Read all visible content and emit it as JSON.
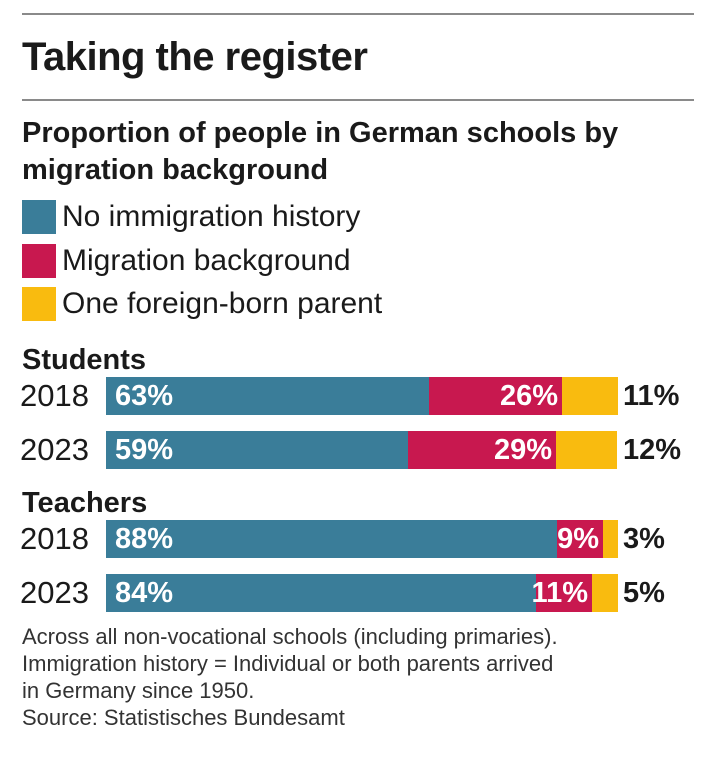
{
  "title": "Taking the register",
  "subtitle": "Proportion of people in German schools by migration background",
  "colors": {
    "no_immigration_history": "#3a7d99",
    "migration_background": "#c8184f",
    "one_foreign_born_parent": "#f9bb0f"
  },
  "legend": [
    {
      "label": "No immigration history",
      "color": "#3a7d99"
    },
    {
      "label": "Migration background",
      "color": "#c8184f"
    },
    {
      "label": "One foreign-born parent",
      "color": "#f9bb0f"
    }
  ],
  "chart_data": {
    "type": "bar",
    "orientation": "horizontal",
    "stacked": true,
    "title": "Proportion of people in German schools by migration background",
    "series": [
      {
        "name": "No immigration history",
        "color": "#3a7d99"
      },
      {
        "name": "Migration background",
        "color": "#c8184f"
      },
      {
        "name": "One foreign-born parent",
        "color": "#f9bb0f"
      }
    ],
    "groups": [
      {
        "name": "Students",
        "rows": [
          {
            "year": "2018",
            "values": [
              63,
              26,
              11
            ],
            "labels": [
              "63%",
              "26%",
              "11%"
            ]
          },
          {
            "year": "2023",
            "values": [
              59,
              29,
              12
            ],
            "labels": [
              "59%",
              "29%",
              "12%"
            ]
          }
        ]
      },
      {
        "name": "Teachers",
        "rows": [
          {
            "year": "2018",
            "values": [
              88,
              9,
              3
            ],
            "labels": [
              "88%",
              "9%",
              "3%"
            ]
          },
          {
            "year": "2023",
            "values": [
              84,
              11,
              5
            ],
            "labels": [
              "84%",
              "11%",
              "5%"
            ]
          }
        ]
      }
    ],
    "xlim": [
      0,
      100
    ],
    "unit": "%"
  },
  "footnote": {
    "lines": [
      "Across all non-vocational schools (including primaries).",
      "Immigration history = Individual or both parents arrived",
      "in Germany since 1950.",
      "Source: Statistisches Bundesamt"
    ]
  }
}
